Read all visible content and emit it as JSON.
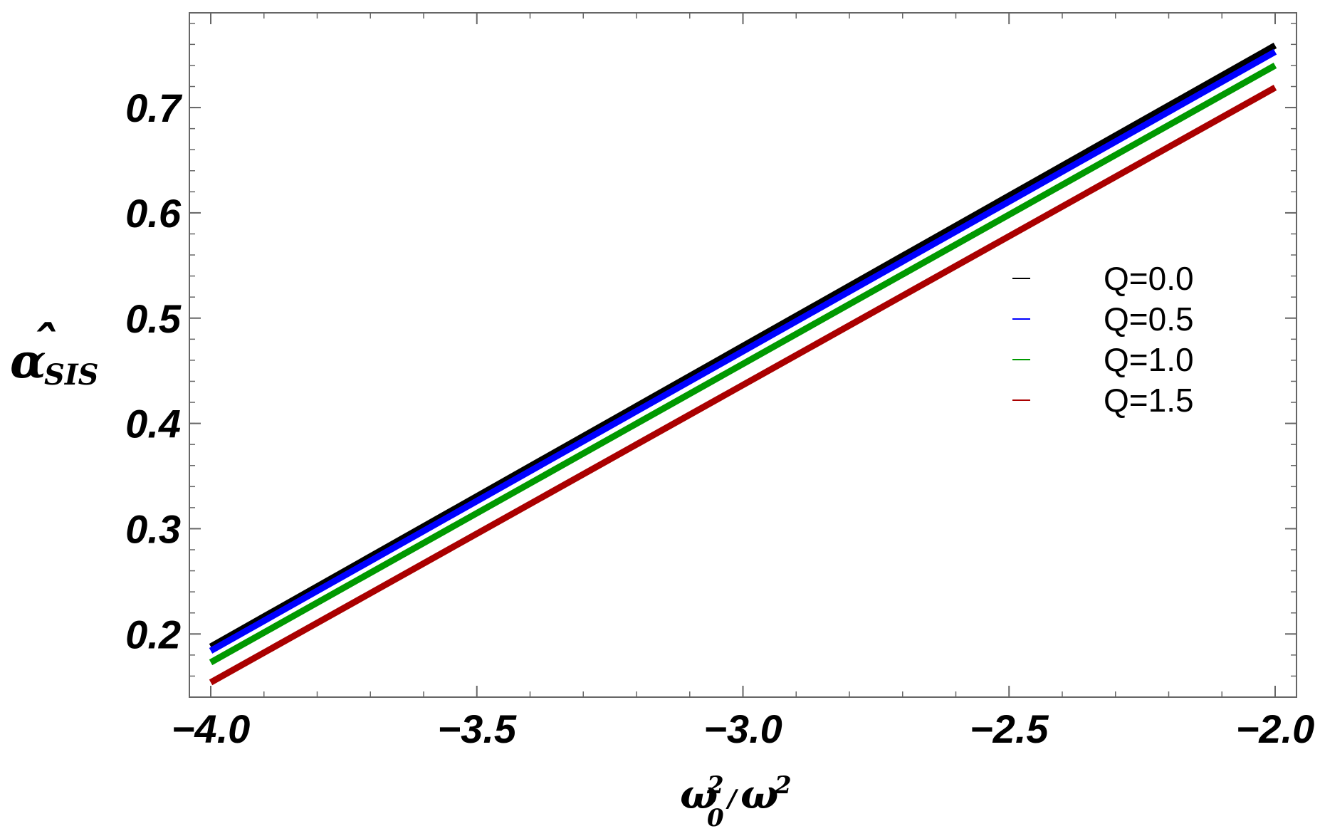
{
  "chart_data": {
    "type": "line",
    "x": [
      -4.0,
      -2.0
    ],
    "series": [
      {
        "name": "Q=0.0",
        "color": "#000000",
        "values": [
          0.188,
          0.759
        ]
      },
      {
        "name": "Q=0.5",
        "color": "#0000ff",
        "values": [
          0.184,
          0.753
        ]
      },
      {
        "name": "Q=1.0",
        "color": "#009900",
        "values": [
          0.173,
          0.74
        ]
      },
      {
        "name": "Q=1.5",
        "color": "#aa0000",
        "values": [
          0.154,
          0.719
        ]
      }
    ],
    "xlim": [
      -4.0,
      -2.0
    ],
    "ylim": [
      0.14,
      0.79
    ],
    "x_ticks": [
      -4.0,
      -3.5,
      -3.0,
      -2.5,
      -2.0
    ],
    "x_tick_labels": [
      "−4.0",
      "−3.5",
      "−3.0",
      "−2.5",
      "−2.0"
    ],
    "y_ticks": [
      0.2,
      0.3,
      0.4,
      0.5,
      0.6,
      0.7
    ],
    "y_tick_labels": [
      "0.2",
      "0.3",
      "0.4",
      "0.5",
      "0.6",
      "0.7"
    ],
    "xlabel": {
      "omega0": "ω",
      "sub0": "0",
      "sup1": "2",
      "slash": "/",
      "omega": "ω",
      "sup2": "2"
    },
    "ylabel": {
      "hat": "ˆ",
      "alpha": "α",
      "sub": "SIS"
    },
    "legend_position": "right",
    "grid": false
  }
}
